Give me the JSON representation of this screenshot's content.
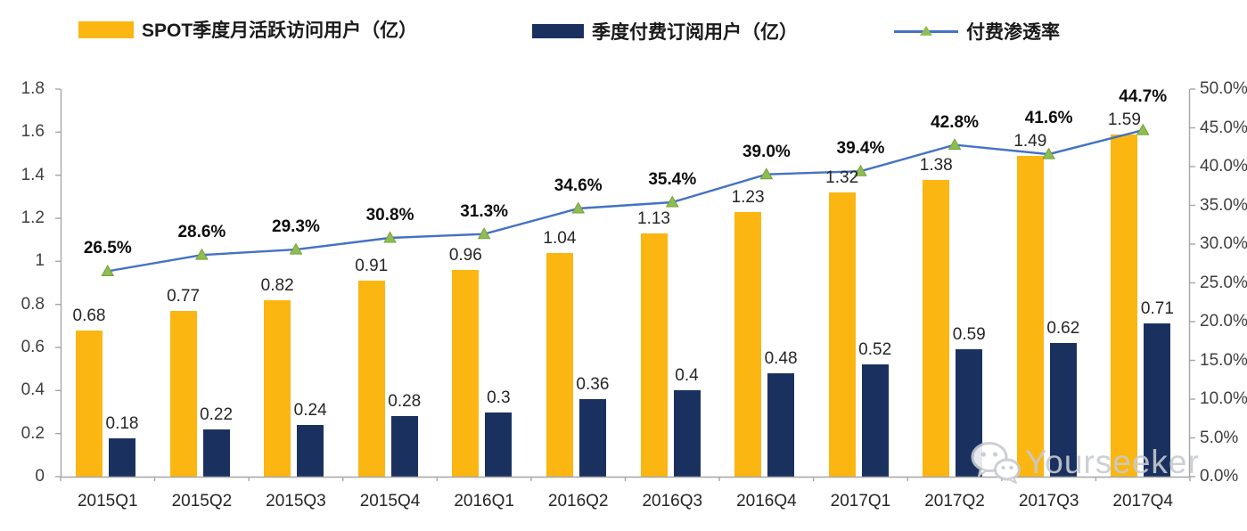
{
  "legend": {
    "items": [
      {
        "label": "SPOT季度月活跃访问用户（亿）",
        "swatch": "bar",
        "color": "#FBB612"
      },
      {
        "label": "季度付费订阅用户（亿）",
        "swatch": "bar",
        "color": "#1A3160"
      },
      {
        "label": "付费渗透率",
        "swatch": "line",
        "color": "#4472C4",
        "marker": "triangle",
        "marker_color": "#8FBC53"
      }
    ]
  },
  "watermark": {
    "text": "Yourseeker",
    "icon": "wechat-icon"
  },
  "chart_data": {
    "type": "bar",
    "subtype": "grouped-bars-with-line-overlay",
    "categories": [
      "2015Q1",
      "2015Q2",
      "2015Q3",
      "2015Q4",
      "2016Q1",
      "2016Q2",
      "2016Q3",
      "2016Q4",
      "2017Q1",
      "2017Q2",
      "2017Q3",
      "2017Q4"
    ],
    "series": [
      {
        "name": "SPOT季度月活跃访问用户（亿）",
        "type": "bar",
        "axis": "left",
        "color": "#FBB612",
        "values": [
          0.68,
          0.77,
          0.82,
          0.91,
          0.96,
          1.04,
          1.13,
          1.23,
          1.32,
          1.38,
          1.49,
          1.59
        ],
        "labels": [
          "0.68",
          "0.77",
          "0.82",
          "0.91",
          "0.96",
          "1.04",
          "1.13",
          "1.23",
          "1.32",
          "1.38",
          "1.49",
          "1.59"
        ]
      },
      {
        "name": "季度付费订阅用户（亿）",
        "type": "bar",
        "axis": "left",
        "color": "#1A3160",
        "values": [
          0.18,
          0.22,
          0.24,
          0.28,
          0.3,
          0.36,
          0.4,
          0.48,
          0.52,
          0.59,
          0.62,
          0.71
        ],
        "labels": [
          "0.18",
          "0.22",
          "0.24",
          "0.28",
          "0.3",
          "0.36",
          "0.4",
          "0.48",
          "0.52",
          "0.59",
          "0.62",
          "0.71"
        ]
      },
      {
        "name": "付费渗透率",
        "type": "line",
        "axis": "right",
        "color": "#4472C4",
        "marker": "triangle",
        "marker_color": "#8FBC53",
        "values": [
          26.5,
          28.6,
          29.3,
          30.8,
          31.3,
          34.6,
          35.4,
          39.0,
          39.4,
          42.8,
          41.6,
          44.7
        ],
        "labels": [
          "26.5%",
          "28.6%",
          "29.3%",
          "30.8%",
          "31.3%",
          "34.6%",
          "35.4%",
          "39.0%",
          "39.4%",
          "42.8%",
          "41.6%",
          "44.7%"
        ]
      }
    ],
    "left_axis": {
      "min": 0,
      "max": 1.8,
      "ticks": [
        "0",
        "0.2",
        "0.4",
        "0.6",
        "0.8",
        "1",
        "1.2",
        "1.4",
        "1.6",
        "1.8"
      ]
    },
    "right_axis": {
      "min": 0,
      "max": 50,
      "ticks": [
        "0.0%",
        "5.0%",
        "10.0%",
        "15.0%",
        "20.0%",
        "25.0%",
        "30.0%",
        "35.0%",
        "40.0%",
        "45.0%",
        "50.0%"
      ]
    },
    "grid": false,
    "legend_position": "top",
    "axis_color": "#A6A6A6"
  }
}
